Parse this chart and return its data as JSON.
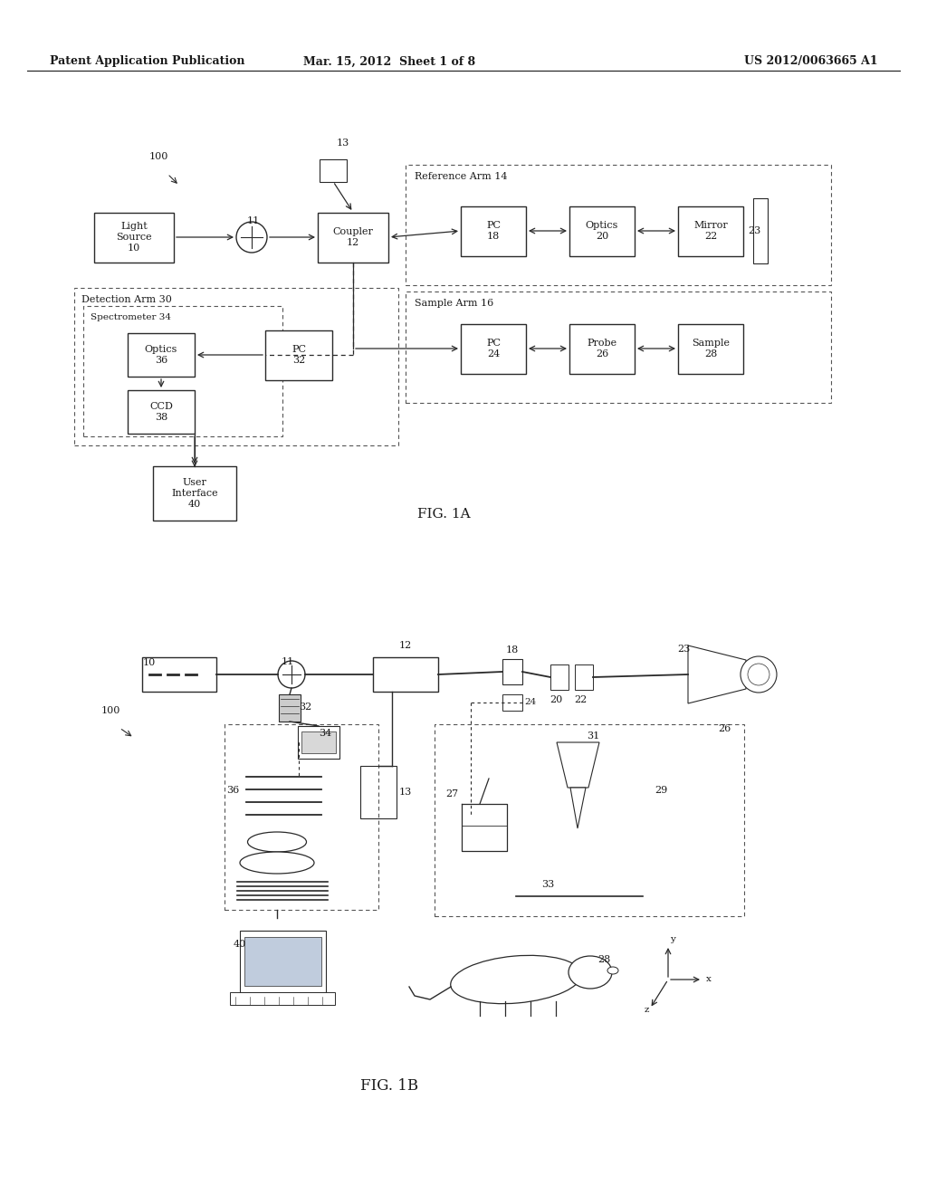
{
  "bg_color": "#ffffff",
  "header_left": "Patent Application Publication",
  "header_center": "Mar. 15, 2012  Sheet 1 of 8",
  "header_right": "US 2012/0063665 A1",
  "fig1a_label": "FIG. 1A",
  "fig1b_label": "FIG. 1B",
  "text_color": "#1a1a1a",
  "box_edge_color": "#2a2a2a",
  "dashed_color": "#555555",
  "arrow_color": "#2a2a2a"
}
